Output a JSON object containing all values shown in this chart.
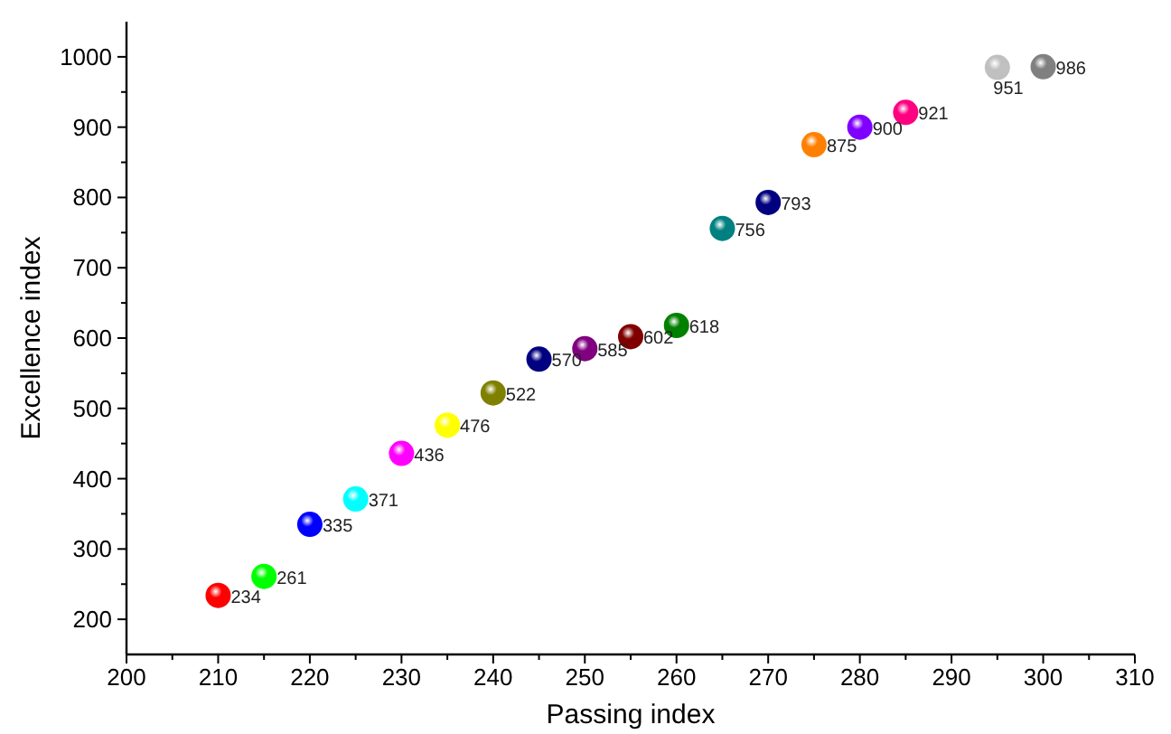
{
  "chart_data": {
    "type": "scatter",
    "xlabel": "Passing index",
    "ylabel": "Excellence index",
    "x": [
      210,
      215,
      220,
      225,
      230,
      235,
      240,
      245,
      250,
      255,
      260,
      265,
      270,
      275,
      280,
      285,
      295,
      300
    ],
    "values": [
      234,
      261,
      335,
      371,
      436,
      476,
      522,
      570,
      585,
      602,
      618,
      756,
      793,
      875,
      900,
      921,
      985,
      986
    ],
    "colors": [
      "#ff0000",
      "#00ff00",
      "#0000ff",
      "#00ffff",
      "#ff00ff",
      "#ffff00",
      "#808000",
      "#000080",
      "#800080",
      "#800000",
      "#008000",
      "#008080",
      "#000080",
      "#ff8000",
      "#8000ff",
      "#ff0080",
      "#c0c0c0",
      "#808080"
    ],
    "value_labels": [
      "234",
      "261",
      "335",
      "371",
      "436",
      "476",
      "522",
      "570",
      "585",
      "602",
      "618",
      "756",
      "793",
      "875",
      "900",
      "921",
      null,
      "986"
    ],
    "annotations": [
      "951"
    ],
    "xlim": [
      200,
      310
    ],
    "xticks": [
      200,
      {
        "value": 205,
        "label": null
      },
      210,
      {
        "value": 215,
        "label": null
      },
      220,
      {
        "value": 225,
        "label": null
      },
      230,
      {
        "value": 235,
        "label": null
      },
      240,
      {
        "value": 245,
        "label": null
      },
      250,
      {
        "value": 255,
        "label": null
      },
      260,
      {
        "value": 265,
        "label": null
      },
      270,
      {
        "value": 275,
        "label": null
      },
      280,
      {
        "value": 285,
        "label": null
      },
      290,
      {
        "value": 295,
        "label": null
      },
      300,
      {
        "value": 305,
        "label": null
      },
      310
    ],
    "ylim": [
      150,
      1050
    ],
    "yticks": [
      200,
      {
        "value": 250,
        "label": null
      },
      300,
      {
        "value": 350,
        "label": null
      },
      400,
      {
        "value": 450,
        "label": null
      },
      500,
      {
        "value": 550,
        "label": null
      },
      600,
      {
        "value": 650,
        "label": null
      },
      700,
      {
        "value": 750,
        "label": null
      },
      800,
      {
        "value": 850,
        "label": null
      },
      900,
      {
        "value": 950,
        "label": null
      },
      1000
    ],
    "marker": "circle",
    "grid": false
  }
}
